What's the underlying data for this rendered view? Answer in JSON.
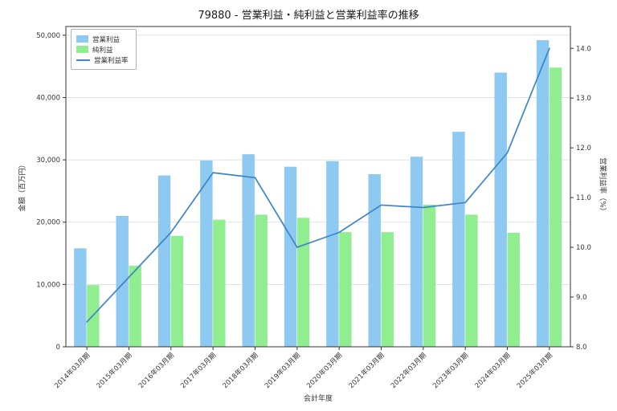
{
  "chart_data": {
    "type": "bar+line",
    "title": "79880 - 営業利益・純利益と営業利益率の推移",
    "xlabel": "会計年度",
    "ylabel_left": "金額（百万円）",
    "ylabel_right": "営業利益率（%）",
    "categories": [
      "2014年03月期",
      "2015年03月期",
      "2016年03月期",
      "2017年03月期",
      "2018年03月期",
      "2019年03月期",
      "2020年03月期",
      "2021年03月期",
      "2022年03月期",
      "2023年03月期",
      "2024年03月期",
      "2025年03月期"
    ],
    "series": [
      {
        "name": "営業利益",
        "type": "bar",
        "axis": "left",
        "color": "#8dc9f0",
        "values": [
          15800,
          21000,
          27500,
          29900,
          30900,
          28900,
          29800,
          27700,
          30500,
          34500,
          44000,
          49200
        ]
      },
      {
        "name": "純利益",
        "type": "bar",
        "axis": "left",
        "color": "#90ee90",
        "values": [
          9900,
          13000,
          17800,
          20400,
          21200,
          20700,
          18400,
          18400,
          22800,
          21200,
          18300,
          44800
        ]
      },
      {
        "name": "営業利益率",
        "type": "line",
        "axis": "right",
        "color": "#3d85c6",
        "values": [
          8.5,
          9.4,
          10.3,
          11.5,
          11.4,
          10.0,
          10.3,
          10.85,
          10.8,
          10.9,
          11.9,
          14.0
        ]
      }
    ],
    "ylim_left": [
      0,
      51400
    ],
    "ylim_right": [
      8.0,
      14.44
    ],
    "yticks_left": [
      0,
      10000,
      20000,
      30000,
      40000,
      50000
    ],
    "yticks_right": [
      8.0,
      9.0,
      10.0,
      11.0,
      12.0,
      13.0,
      14.0
    ],
    "grid": true,
    "legend_position": "upper left",
    "colors": {
      "grid": "#d9d9d9",
      "spine": "#333333",
      "tick_text": "#333333",
      "background": "#ffffff"
    }
  }
}
